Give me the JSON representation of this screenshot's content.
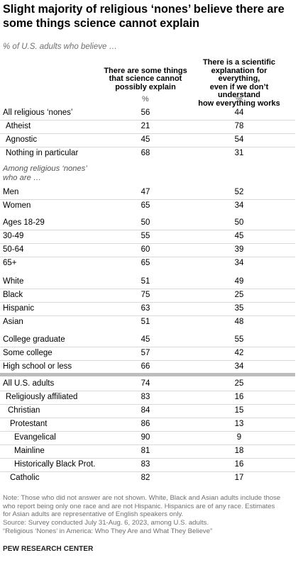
{
  "title_line1": "Slight majority of religious ‘nones’ believe there are",
  "title_line2": "some things science cannot explain",
  "subtitle": "% of U.S. adults who believe …",
  "columns": {
    "col1_line1": "There are some things",
    "col1_line2": "that science cannot",
    "col1_line3": "possibly explain",
    "col2_line1": "There is a scientific",
    "col2_line2": "explanation for everything,",
    "col2_line3": "even if we don’t understand",
    "col2_line4": "how everything works",
    "unit": "%"
  },
  "section_label_line1": "Among religious ‘nones’",
  "section_label_line2": "who are …",
  "chart_data": {
    "type": "table",
    "title": "Slight majority of religious ‘nones’ believe there are some things science cannot explain",
    "subtitle": "% of U.S. adults who believe …",
    "columns": [
      "There are some things that science cannot possibly explain",
      "There is a scientific explanation for everything, even if we don’t understand how everything works"
    ],
    "rows": [
      {
        "label": "All religious ‘nones’",
        "values": [
          56,
          44
        ]
      },
      {
        "label": "Atheist",
        "values": [
          21,
          78
        ]
      },
      {
        "label": "Agnostic",
        "values": [
          45,
          54
        ]
      },
      {
        "label": "Nothing in particular",
        "values": [
          68,
          31
        ]
      },
      {
        "label": "Men",
        "values": [
          47,
          52
        ]
      },
      {
        "label": "Women",
        "values": [
          65,
          34
        ]
      },
      {
        "label": "Ages 18-29",
        "values": [
          50,
          50
        ]
      },
      {
        "label": "30-49",
        "values": [
          55,
          45
        ]
      },
      {
        "label": "50-64",
        "values": [
          60,
          39
        ]
      },
      {
        "label": "65+",
        "values": [
          65,
          34
        ]
      },
      {
        "label": "White",
        "values": [
          51,
          49
        ]
      },
      {
        "label": "Black",
        "values": [
          75,
          25
        ]
      },
      {
        "label": "Hispanic",
        "values": [
          63,
          35
        ]
      },
      {
        "label": "Asian",
        "values": [
          51,
          48
        ]
      },
      {
        "label": "College graduate",
        "values": [
          45,
          55
        ]
      },
      {
        "label": "Some college",
        "values": [
          57,
          42
        ]
      },
      {
        "label": "High school or less",
        "values": [
          66,
          34
        ]
      },
      {
        "label": "All U.S. adults",
        "values": [
          74,
          25
        ]
      },
      {
        "label": "Religiously affiliated",
        "values": [
          83,
          16
        ]
      },
      {
        "label": "Christian",
        "values": [
          84,
          15
        ]
      },
      {
        "label": "Protestant",
        "values": [
          86,
          13
        ]
      },
      {
        "label": "Evangelical",
        "values": [
          90,
          9
        ]
      },
      {
        "label": "Mainline",
        "values": [
          81,
          18
        ]
      },
      {
        "label": "Historically Black Prot.",
        "values": [
          83,
          16
        ]
      },
      {
        "label": "Catholic",
        "values": [
          82,
          17
        ]
      }
    ]
  },
  "notes": {
    "line1": "Note: Those who did not answer are not shown. White, Black and Asian adults include those",
    "line2": "who report being only one race and are not Hispanic. Hispanics are of any race. Estimates",
    "line3": "for Asian adults are representative of English speakers only.",
    "line4": "Source: Survey conducted July 31-Aug. 6, 2023, among U.S. adults.",
    "line5": "“Religious ‘Nones’ in America: Who They Are and What They Believe”"
  },
  "footer": "PEW RESEARCH CENTER"
}
